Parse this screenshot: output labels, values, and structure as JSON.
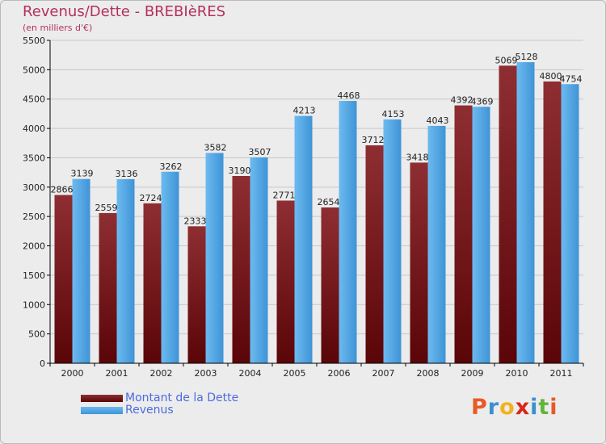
{
  "header": {
    "title": "Revenus/Dette - BREBIèRES",
    "subtitle": "(en milliers d'€)"
  },
  "logo": {
    "text": "Proxiti",
    "colors": [
      "#e85a25",
      "#3a8fd0",
      "#f2b11e",
      "#d9261c",
      "#3a8fd0",
      "#63b33c",
      "#e85a25"
    ]
  },
  "colors": {
    "debt": "#6b0f14",
    "debt_light": "#8f2a2f",
    "revenue": "#4ea6e4",
    "revenue_light": "#6fbcf0",
    "grid": "#c8c8c8",
    "axis": "#000000"
  },
  "chart_data": {
    "type": "bar",
    "title": "Revenus/Dette - BREBIèRES",
    "subtitle": "(en milliers d'€)",
    "categories": [
      "2000",
      "2001",
      "2002",
      "2003",
      "2004",
      "2005",
      "2006",
      "2007",
      "2008",
      "2009",
      "2010",
      "2011"
    ],
    "series": [
      {
        "name": "Montant de la Dette",
        "values": [
          2866,
          2559,
          2724,
          2333,
          3190,
          2771,
          2654,
          3712,
          3418,
          4392,
          5069,
          4800
        ]
      },
      {
        "name": "Revenus",
        "values": [
          3139,
          3136,
          3262,
          3582,
          3507,
          4213,
          4468,
          4153,
          4043,
          4369,
          5128,
          4754
        ]
      }
    ],
    "ylim": [
      0,
      5500
    ],
    "yticks": [
      0,
      500,
      1000,
      1500,
      2000,
      2500,
      3000,
      3500,
      4000,
      4500,
      5000,
      5500
    ],
    "grid": true,
    "legend": "bottom-left"
  }
}
